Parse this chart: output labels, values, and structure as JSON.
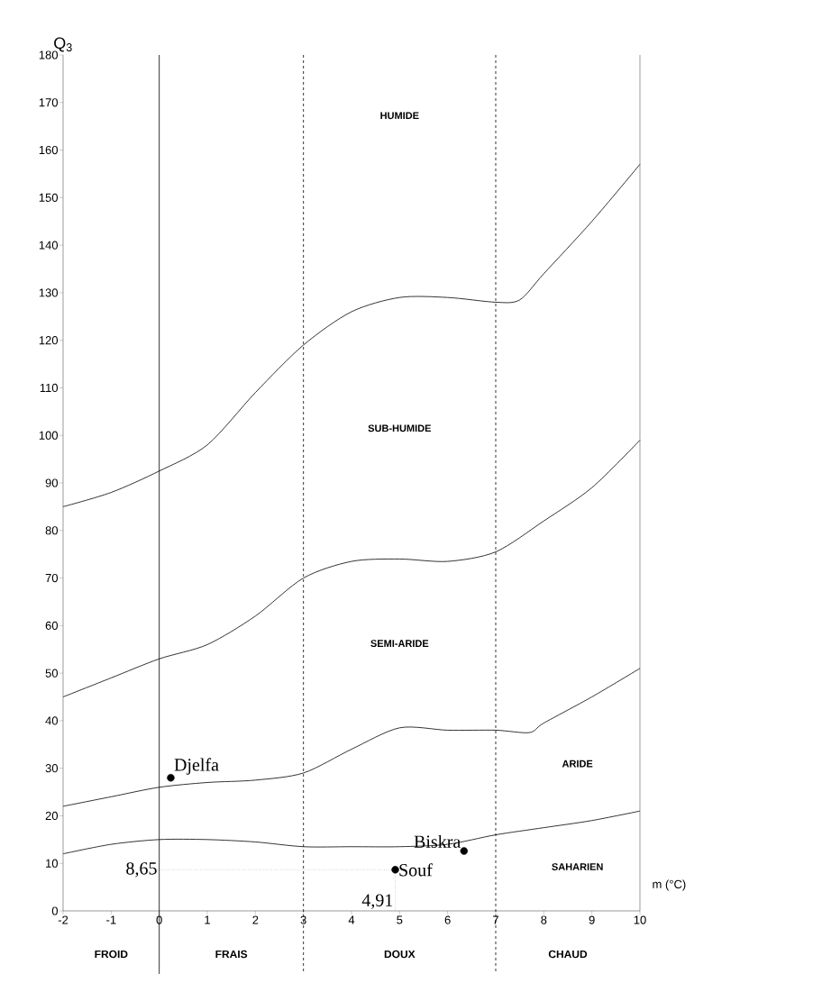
{
  "chart_data": {
    "type": "line",
    "xlabel": "m (°C)",
    "ylabel": "Q$_{3}$",
    "xlim": [
      -2,
      10
    ],
    "ylim": [
      0,
      180
    ],
    "xticks": [
      -2,
      -1,
      0,
      1,
      2,
      3,
      4,
      5,
      6,
      7,
      8,
      9,
      10
    ],
    "yticks": [
      0,
      10,
      20,
      30,
      40,
      50,
      60,
      70,
      80,
      90,
      100,
      110,
      120,
      130,
      140,
      150,
      160,
      170,
      180
    ],
    "series": [
      {
        "color": "#000000",
        "line_style": "solid",
        "marker": "none",
        "x": [
          -2,
          -1,
          0,
          1,
          2,
          3,
          4,
          5,
          6,
          7,
          7.5,
          8,
          9,
          10
        ],
        "values": [
          85,
          88,
          92.5,
          98,
          109,
          119,
          126,
          129,
          129,
          128,
          128.5,
          134,
          145,
          157
        ]
      },
      {
        "color": "#000000",
        "line_style": "solid",
        "marker": "none",
        "x": [
          -2,
          -1,
          0,
          1,
          2,
          3,
          4,
          5,
          6,
          7,
          8,
          9,
          10
        ],
        "values": [
          45,
          49,
          53,
          56,
          62,
          70,
          73.5,
          74,
          73.5,
          75.5,
          82,
          89,
          99
        ]
      },
      {
        "color": "#000000",
        "line_style": "solid",
        "marker": "none",
        "x": [
          -2,
          -1,
          0,
          1,
          2,
          3,
          4,
          5,
          6,
          7,
          7.7,
          8,
          9,
          10
        ],
        "values": [
          22,
          24,
          26,
          27,
          27.5,
          29,
          34,
          38.5,
          38,
          38,
          37.5,
          39.5,
          45,
          51
        ]
      },
      {
        "color": "#000000",
        "line_style": "solid",
        "marker": "none",
        "x": [
          -2,
          -1,
          0,
          1,
          2,
          3,
          4,
          5,
          6,
          7,
          8,
          9,
          10
        ],
        "values": [
          12,
          14,
          15,
          15,
          14.5,
          13.5,
          13.5,
          13.5,
          14,
          16,
          17.5,
          19,
          21
        ]
      },
      {
        "color": "#000000",
        "line_style": "dotted",
        "marker": "none",
        "x": [
          0,
          4.91,
          4.91
        ],
        "values": [
          8.65,
          8.65,
          0
        ]
      },
      {
        "type": "scatter",
        "name": "Djelfa",
        "color": "#000000",
        "marker": "circle",
        "x": [
          0.24
        ],
        "values": [
          28
        ]
      },
      {
        "type": "scatter",
        "name": "Biskra",
        "color": "#000000",
        "marker": "circle",
        "x": [
          6.34
        ],
        "values": [
          12.6
        ]
      },
      {
        "type": "scatter",
        "name": "Souf",
        "color": "#000000",
        "marker": "circle",
        "x": [
          4.91
        ],
        "values": [
          8.65
        ]
      }
    ],
    "ref_lines": [
      {
        "axis": "x",
        "value": 0,
        "line_style": "solid"
      },
      {
        "axis": "x",
        "value": 3,
        "line_style": "dashed"
      },
      {
        "axis": "x",
        "value": 7,
        "line_style": "dashed"
      }
    ],
    "annotations": [
      "HUMIDE",
      "SUB-HUMIDE",
      "SEMI-ARIDE",
      "ARIDE",
      "SAHARIEN",
      "FROID",
      "FRAIS",
      "DOUX",
      "CHAUD",
      {
        "text": "8,65",
        "x": 0,
        "y": 8.65
      },
      {
        "text": "4,91",
        "x": 4.91,
        "y": 0
      }
    ]
  }
}
